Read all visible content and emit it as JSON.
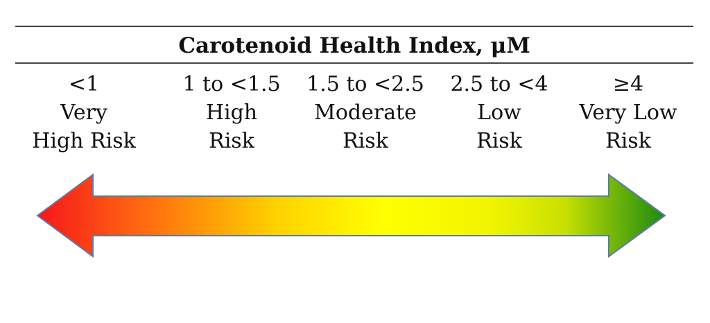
{
  "title": "Carotenoid Health Index, μM",
  "categories": [
    {
      "range": "<1",
      "line1": "Very",
      "line2": "High Risk"
    },
    {
      "range": "1 to <1.5",
      "line1": "High",
      "line2": "Risk"
    },
    {
      "range": "1.5 to <2.5",
      "line1": "Moderate",
      "line2": "Risk"
    },
    {
      "range": "2.5 to <4",
      "line1": "Low",
      "line2": "Risk"
    },
    {
      "range": "≥4",
      "line1": "Very Low",
      "line2": "Risk"
    }
  ],
  "arrow": {
    "gradient_colors": [
      "#f5171c",
      "#ff6a10",
      "#ffd100",
      "#ffff00",
      "#f2f500",
      "#c8e000",
      "#1a8a10"
    ],
    "outline_color": "#5b7aa8"
  }
}
